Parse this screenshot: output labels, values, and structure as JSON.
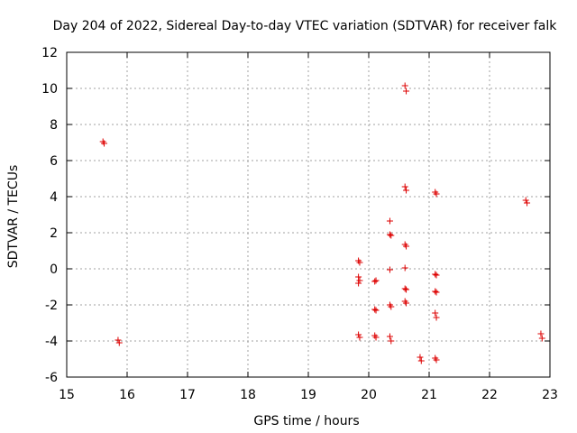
{
  "chart_data": {
    "type": "scatter",
    "title": "Day 204 of 2022, Sidereal Day-to-day VTEC variation (SDTVAR) for receiver falk",
    "xlabel": "GPS time / hours",
    "ylabel": "SDTVAR / TECUs",
    "xlim": [
      15,
      23
    ],
    "ylim": [
      -6,
      12
    ],
    "xticks": [
      "15",
      "16",
      "17",
      "18",
      "19",
      "20",
      "21",
      "22",
      "23"
    ],
    "yticks": [
      "-6",
      "-4",
      "-2",
      "0",
      "2",
      "4",
      "6",
      "8",
      "10",
      "12"
    ],
    "grid": true,
    "marker": "plus",
    "color": "#dd0000",
    "series": [
      {
        "name": "SDTVAR",
        "points": [
          [
            15.6,
            7.05
          ],
          [
            15.62,
            6.95
          ],
          [
            15.85,
            -3.95
          ],
          [
            15.87,
            -4.1
          ],
          [
            19.83,
            0.45
          ],
          [
            19.85,
            0.35
          ],
          [
            19.83,
            -0.45
          ],
          [
            19.85,
            -0.65
          ],
          [
            19.83,
            -0.8
          ],
          [
            19.83,
            -3.65
          ],
          [
            19.85,
            -3.8
          ],
          [
            20.1,
            -0.7
          ],
          [
            20.12,
            -0.65
          ],
          [
            20.1,
            -2.25
          ],
          [
            20.12,
            -2.3
          ],
          [
            20.1,
            -3.7
          ],
          [
            20.12,
            -3.8
          ],
          [
            20.35,
            2.65
          ],
          [
            20.35,
            1.9
          ],
          [
            20.37,
            1.85
          ],
          [
            20.35,
            -0.05
          ],
          [
            20.35,
            -2.0
          ],
          [
            20.37,
            -2.1
          ],
          [
            20.35,
            -3.75
          ],
          [
            20.37,
            -4.0
          ],
          [
            20.6,
            10.15
          ],
          [
            20.62,
            9.85
          ],
          [
            20.6,
            4.55
          ],
          [
            20.62,
            4.35
          ],
          [
            20.6,
            1.35
          ],
          [
            20.62,
            1.25
          ],
          [
            20.6,
            0.05
          ],
          [
            20.6,
            -1.1
          ],
          [
            20.62,
            -1.15
          ],
          [
            20.6,
            -1.8
          ],
          [
            20.62,
            -1.9
          ],
          [
            20.85,
            -4.9
          ],
          [
            20.87,
            -5.1
          ],
          [
            21.1,
            4.25
          ],
          [
            21.12,
            4.15
          ],
          [
            21.1,
            -0.3
          ],
          [
            21.12,
            -0.35
          ],
          [
            21.1,
            -1.25
          ],
          [
            21.12,
            -1.3
          ],
          [
            21.1,
            -2.45
          ],
          [
            21.12,
            -2.7
          ],
          [
            21.1,
            -4.95
          ],
          [
            21.12,
            -5.05
          ],
          [
            22.6,
            3.8
          ],
          [
            22.62,
            3.65
          ],
          [
            22.85,
            -3.6
          ],
          [
            22.87,
            -3.85
          ]
        ]
      }
    ]
  }
}
